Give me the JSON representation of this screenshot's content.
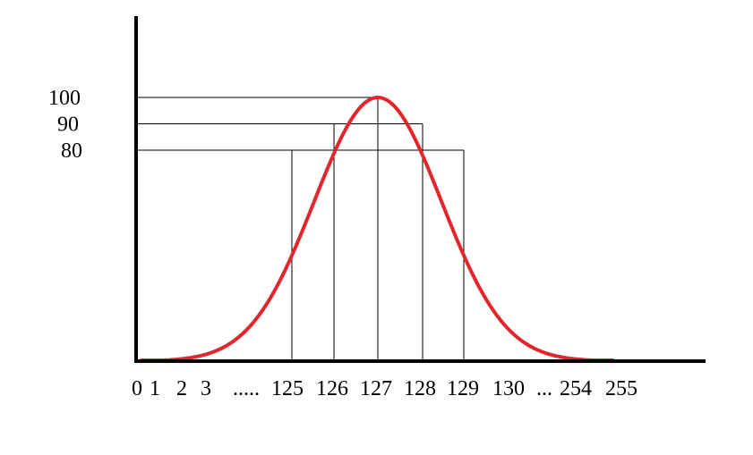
{
  "chart_data": {
    "type": "line",
    "title": "",
    "xlabel": "",
    "ylabel": "",
    "x_tick_labels": [
      "0",
      "1",
      "2",
      "3",
      ".....",
      "125",
      "126",
      "127",
      "128",
      "129",
      "130",
      "...",
      "254",
      "255"
    ],
    "y_tick_labels": [
      "100",
      "90",
      "80"
    ],
    "y_ticks": [
      100,
      90,
      80
    ],
    "marked_points": [
      {
        "x": 125,
        "y": 80
      },
      {
        "x": 126,
        "y": 90
      },
      {
        "x": 127,
        "y": 100
      },
      {
        "x": 128,
        "y": 90
      },
      {
        "x": 129,
        "y": 80
      }
    ],
    "curve": {
      "shape": "bell",
      "peak": 100,
      "peak_at": 127,
      "start": 0,
      "end": 255
    },
    "grid": false,
    "legend": "none",
    "colors": {
      "curve": "#e3262d",
      "axes": "#000000",
      "guides": "#000000"
    }
  }
}
